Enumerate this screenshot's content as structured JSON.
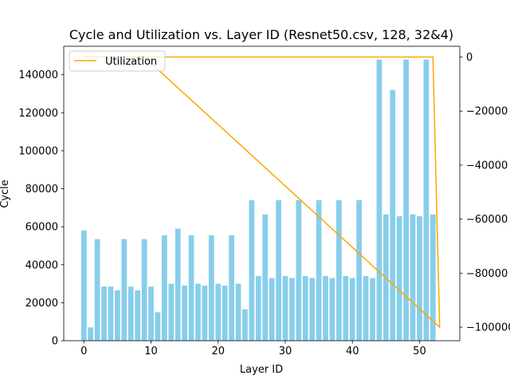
{
  "chart_data": {
    "type": "bar",
    "title": "Cycle and Utilization vs. Layer ID (Resnet50.csv, 128, 32&4)",
    "xlabel": "Layer ID",
    "ylabel": "Cycle",
    "y2label": "",
    "xlim": [
      -3,
      56
    ],
    "ylim": [
      0,
      155000
    ],
    "y2lim": [
      -105000,
      4000
    ],
    "xticks": [
      0,
      10,
      20,
      30,
      40,
      50
    ],
    "yticks": [
      0,
      20000,
      40000,
      60000,
      80000,
      100000,
      120000,
      140000
    ],
    "y2ticks": [
      -100000,
      -80000,
      -60000,
      -40000,
      -20000,
      0
    ],
    "x": [
      0,
      1,
      2,
      3,
      4,
      5,
      6,
      7,
      8,
      9,
      10,
      11,
      12,
      13,
      14,
      15,
      16,
      17,
      18,
      19,
      20,
      21,
      22,
      23,
      24,
      25,
      26,
      27,
      28,
      29,
      30,
      31,
      32,
      33,
      34,
      35,
      36,
      37,
      38,
      39,
      40,
      41,
      42,
      43,
      44,
      45,
      46,
      47,
      48,
      49,
      50,
      51,
      52
    ],
    "series": [
      {
        "name": "Cycle",
        "type": "bar",
        "color": "#87CEEB",
        "values": [
          58000,
          7000,
          53500,
          28500,
          28500,
          26500,
          53500,
          28500,
          26500,
          53500,
          28500,
          15000,
          55500,
          30000,
          59000,
          29000,
          55500,
          30000,
          29000,
          55500,
          30000,
          29000,
          55500,
          30000,
          16500,
          74000,
          34000,
          66500,
          33000,
          74000,
          34000,
          33000,
          74000,
          34000,
          33000,
          74000,
          34000,
          33000,
          74000,
          34000,
          33000,
          74000,
          34000,
          33000,
          148000,
          66500,
          132000,
          65500,
          148000,
          66500,
          65500,
          148000,
          66500
        ]
      },
      {
        "name": "Utilization",
        "type": "line",
        "color": "#FFA500",
        "x": [
          0,
          52,
          53,
          9,
          0
        ],
        "values": [
          0,
          0,
          -100000,
          0,
          0
        ]
      }
    ],
    "legend": "top-left",
    "grid": false
  }
}
